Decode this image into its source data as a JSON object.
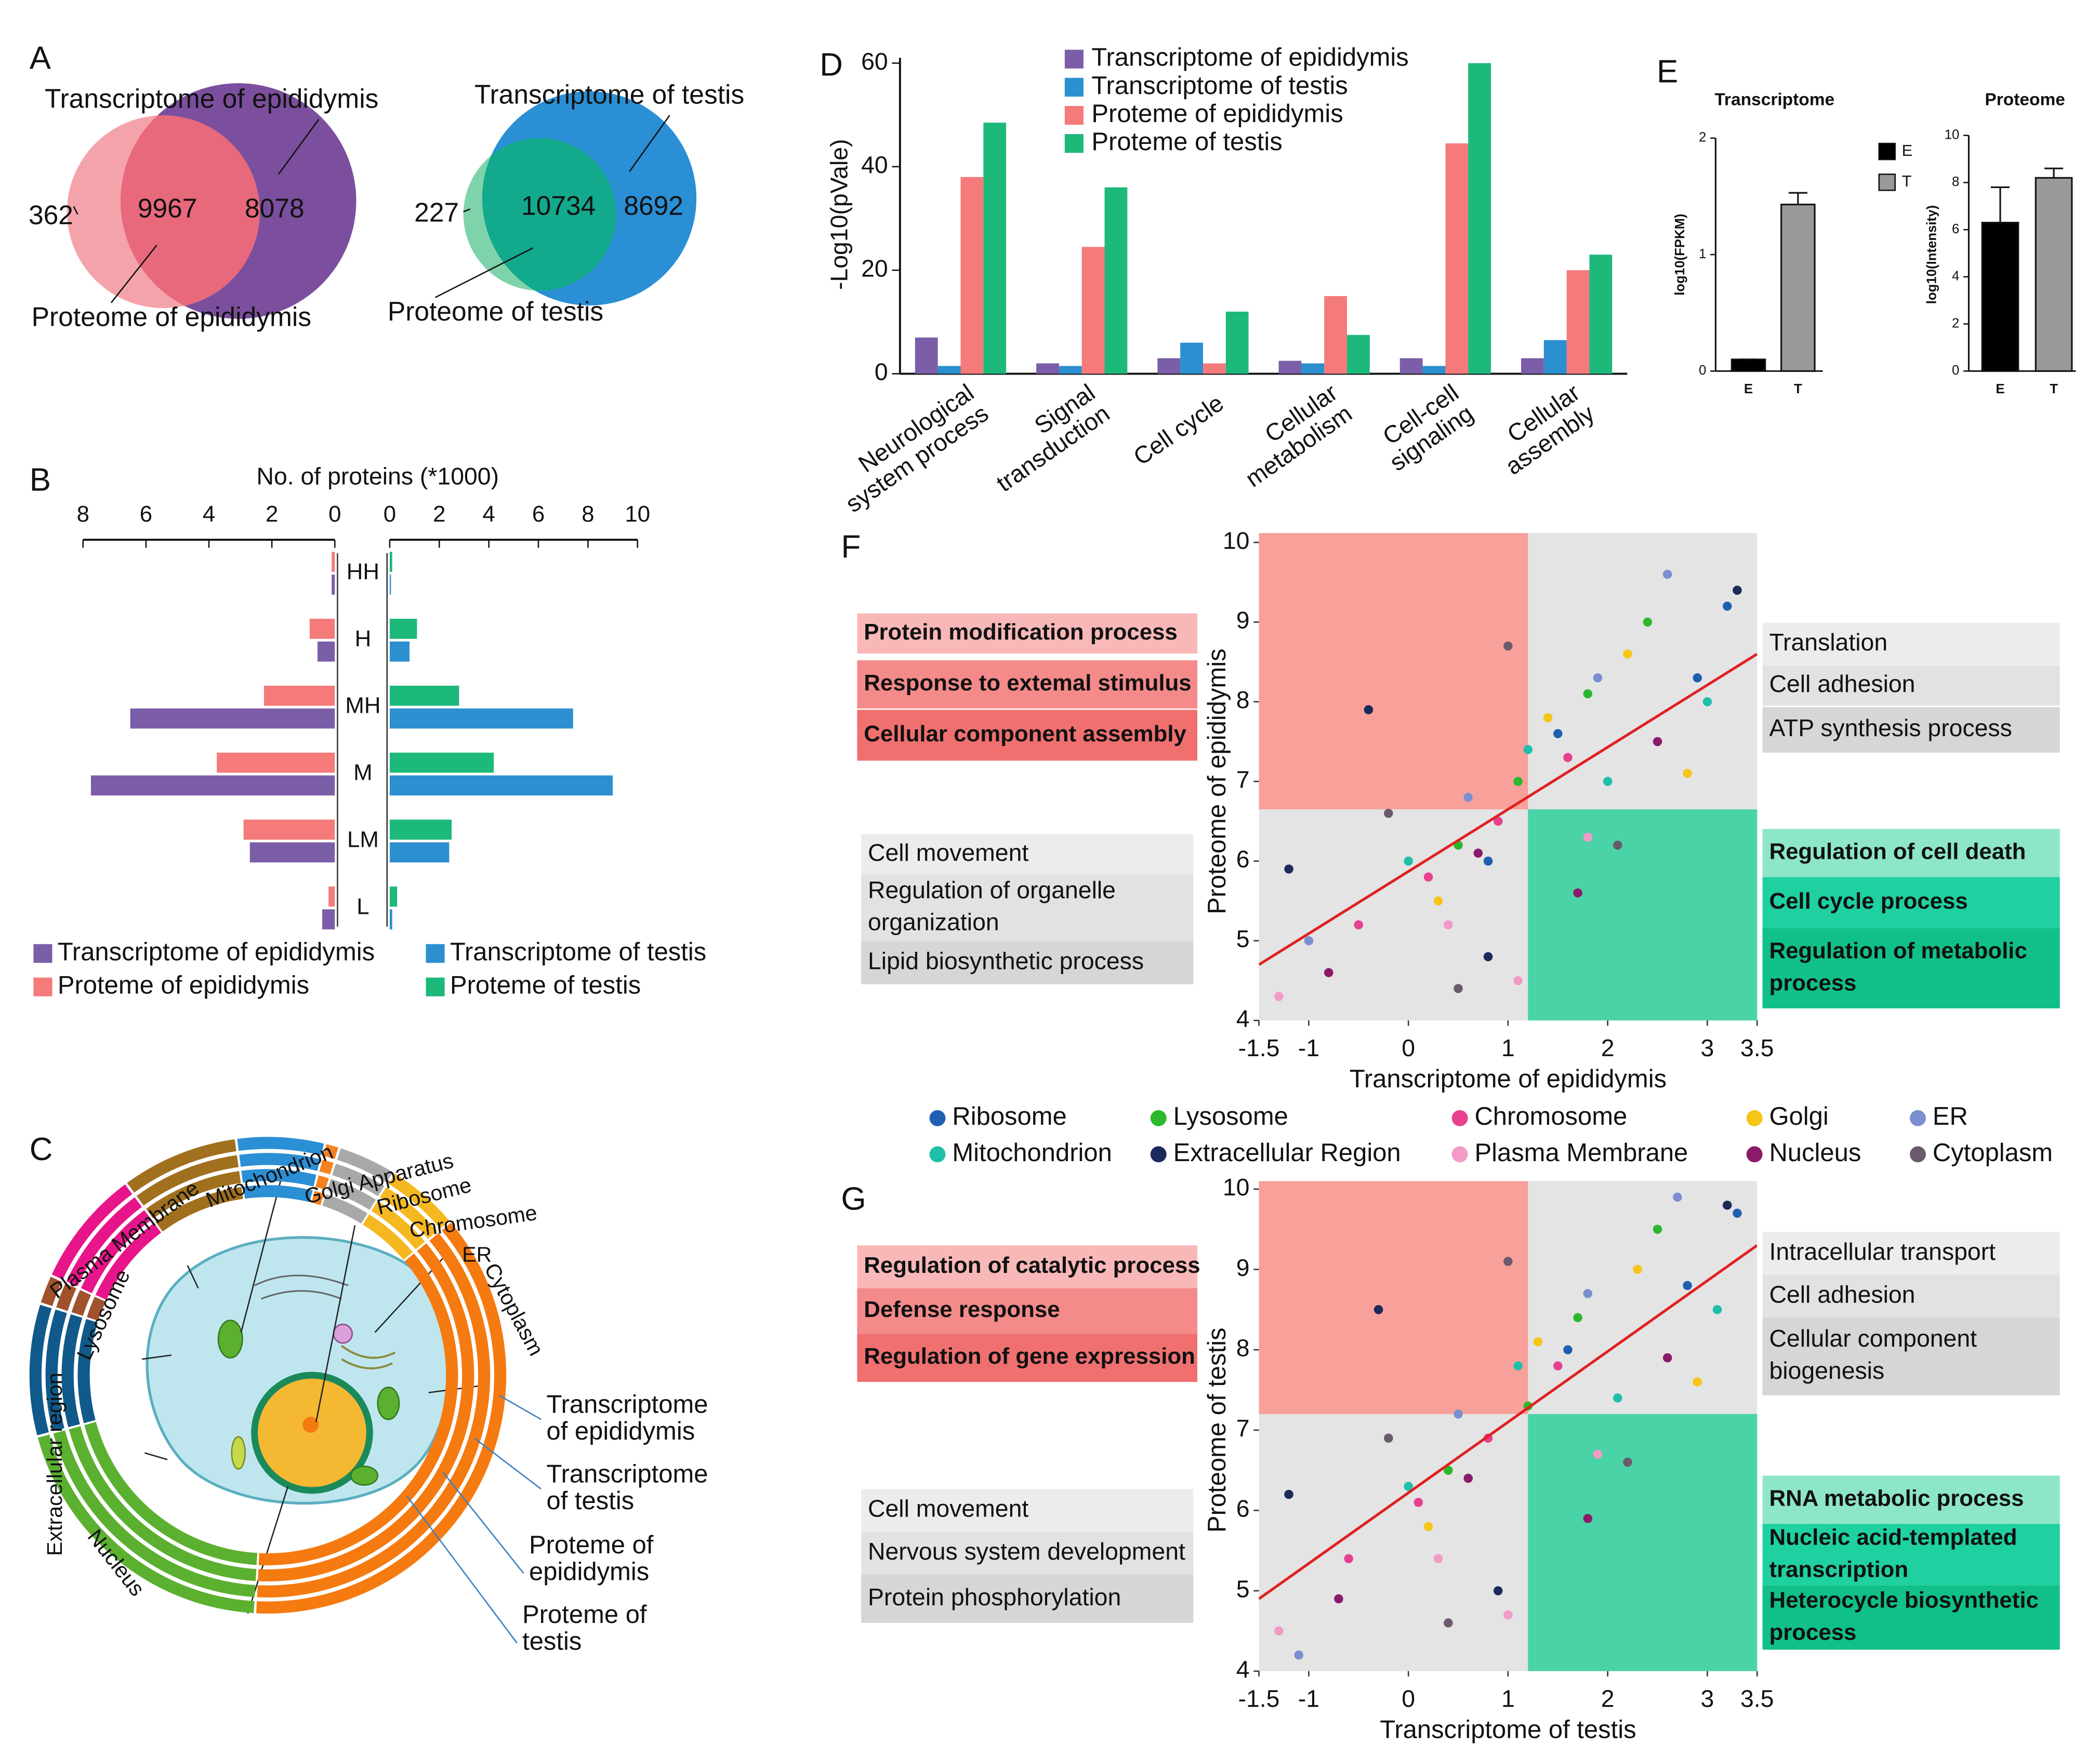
{
  "chart_data": [
    {
      "type": "venn",
      "panel": "A",
      "sets": [
        {
          "name": "Transcriptome of epididymis",
          "color": "#7b4f9d"
        },
        {
          "name": "Proteome of epididymis",
          "color": "#f5a3ab"
        }
      ],
      "overlap_color": "#e8687c",
      "values": [
        362,
        9967,
        8078
      ]
    },
    {
      "type": "venn",
      "sets": [
        {
          "name": "Transcriptome of testis",
          "color": "#2a8fd4"
        },
        {
          "name": "Proteome of testis",
          "color": "#7fd3ab"
        }
      ],
      "overlap_color": "#13a98c",
      "values": [
        227,
        10734,
        8692
      ]
    },
    {
      "type": "butterfly",
      "panel": "B",
      "title": "No. of proteins (*1000)",
      "categories": [
        "HH",
        "H",
        "MH",
        "M",
        "LM",
        "L"
      ],
      "xlim": [
        0,
        8
      ],
      "xticks": [
        8,
        6,
        4,
        2,
        0
      ],
      "x2lim": [
        0,
        10
      ],
      "x2ticks": [
        0,
        2,
        4,
        6,
        8,
        10
      ],
      "series": [
        {
          "name": "Transcriptome of epididymis",
          "color": "#7b5ea7",
          "values": [
            0.1,
            0.55,
            6.5,
            7.75,
            2.7,
            0.4
          ]
        },
        {
          "name": "Proteme of epididymis",
          "color": "#f57a7a",
          "values": [
            0.1,
            0.8,
            2.25,
            3.75,
            2.9,
            0.2
          ]
        },
        {
          "name": "Transcriptome of testis",
          "color": "#2b8fd0",
          "axis": "x2",
          "values": [
            0.05,
            0.8,
            7.4,
            9.0,
            2.4,
            0.1
          ]
        },
        {
          "name": "Proteme of testis",
          "color": "#1db97a",
          "axis": "x2",
          "values": [
            0.1,
            1.1,
            2.8,
            4.2,
            2.5,
            0.3
          ]
        }
      ]
    },
    {
      "type": "ring",
      "panel": "C",
      "categories": [
        "Plasma Membrane",
        "Mitochondrion",
        "Golgi Apparatus",
        "ER",
        "Ribosome",
        "Chromosome",
        "Cytoplasm",
        "Nucleus",
        "Extracellular region",
        "Lysosome"
      ],
      "colors": [
        "#e8158a",
        "#a0701e",
        "#2a8fd4",
        "#f58220",
        "#a8a8a8",
        "#f5b820",
        "#f57a10",
        "#5cb030",
        "#0f5a8a",
        "#a0522d"
      ],
      "series": [
        {
          "name": "Transcriptome of epididymis",
          "values": [
            8,
            8,
            6,
            1,
            4,
            5,
            37,
            20,
            9,
            2
          ]
        },
        {
          "name": "Transcriptome of testis",
          "values": [
            8,
            8,
            6,
            1,
            4,
            5,
            37,
            20,
            9,
            2
          ]
        },
        {
          "name": "Proteme of epididymis",
          "values": [
            8,
            8,
            6,
            1,
            4,
            5,
            37,
            20,
            9,
            2
          ]
        },
        {
          "name": "Proteme of testis",
          "values": [
            8,
            8,
            6,
            1,
            4,
            5,
            37,
            20,
            9,
            2
          ]
        }
      ]
    },
    {
      "type": "bar",
      "panel": "D",
      "ylabel": "-Log10(pVale)",
      "categories": [
        "Neurological system process",
        "Signal transduction",
        "Cell cycle",
        "Cellular metabolism",
        "Cell-cell signaling",
        "Cellular assembly"
      ],
      "ylim": [
        0,
        60
      ],
      "yticks": [
        0,
        20,
        40,
        60
      ],
      "series": [
        {
          "name": "Transcriptome of epididymis",
          "color": "#7b5ea7",
          "values": [
            7,
            2,
            3,
            2.5,
            3,
            3
          ]
        },
        {
          "name": "Transcriptome of testis",
          "color": "#2b8fd0",
          "values": [
            1.5,
            1.5,
            6,
            2,
            1.5,
            6.5
          ]
        },
        {
          "name": "Proteme of epididymis",
          "color": "#f57a7a",
          "values": [
            38,
            24.5,
            2,
            15,
            44.5,
            20
          ]
        },
        {
          "name": "Proteme of testis",
          "color": "#1db97a",
          "values": [
            48.5,
            36,
            12,
            7.5,
            60,
            23
          ]
        }
      ]
    },
    {
      "type": "errorbar",
      "panel": "E",
      "title": "Transcriptome",
      "ylabel": "log10(FPKM)",
      "categories": [
        "E",
        "T"
      ],
      "values": [
        0.1,
        1.43
      ],
      "errors": [
        0,
        0.1
      ],
      "colors": [
        "#000000",
        "#999999"
      ],
      "ylim": [
        0,
        2
      ],
      "yticks": [
        0,
        1,
        2
      ]
    },
    {
      "type": "errorbar",
      "title": "Proteome",
      "ylabel": "log10(Intensity)",
      "categories": [
        "E",
        "T"
      ],
      "values": [
        6.3,
        8.2
      ],
      "errors": [
        1.5,
        0.4
      ],
      "colors": [
        "#000000",
        "#999999"
      ],
      "ylim": [
        0,
        10
      ],
      "yticks": [
        0,
        2,
        4,
        6,
        8,
        10
      ],
      "legend": true
    },
    {
      "type": "scatter",
      "panel": "F",
      "xlabel": "Transcriptome of epididymis",
      "ylabel": "Proteome of epididymis",
      "xlim": [
        -1.5,
        3.5
      ],
      "xticks": [
        -1.5,
        -1,
        0,
        1,
        2,
        3,
        3.5
      ],
      "ylim": [
        4,
        10
      ],
      "yticks": [
        4,
        5,
        6,
        7,
        8,
        9,
        10
      ],
      "quadrant_split": [
        1.2,
        6.65
      ],
      "quadrant_colors": [
        "#f8a09a",
        "#4ad3a6"
      ],
      "fit_line": {
        "x": [
          -1.5,
          3.5
        ],
        "y": [
          4.7,
          8.6
        ],
        "color": "#e02020"
      },
      "series": [
        {
          "x": [
            2.9,
            3.2,
            1.5,
            0.8
          ],
          "values": [
            8.3,
            9.2,
            7.6,
            6.0
          ]
        },
        {
          "x": [
            0.5,
            1.8,
            2.4,
            1.1
          ],
          "values": [
            6.2,
            8.1,
            9.0,
            7.0
          ]
        },
        {
          "x": [
            -0.5,
            0.9,
            1.6,
            0.2
          ],
          "values": [
            5.2,
            6.5,
            7.3,
            5.8
          ]
        },
        {
          "x": [
            0.3,
            1.4,
            2.2,
            2.8
          ],
          "values": [
            5.5,
            7.8,
            8.6,
            7.1
          ]
        },
        {
          "x": [
            -1.0,
            0.6,
            1.9,
            2.6
          ],
          "values": [
            5.0,
            6.8,
            8.3,
            9.6
          ]
        },
        {
          "x": [
            0.0,
            1.2,
            2.0,
            3.0
          ],
          "values": [
            6.0,
            7.4,
            7.0,
            8.0
          ]
        },
        {
          "x": [
            -1.2,
            -0.4,
            0.8,
            3.3
          ],
          "values": [
            5.9,
            7.9,
            4.8,
            9.4
          ]
        },
        {
          "x": [
            -1.3,
            0.4,
            1.1,
            1.8
          ],
          "values": [
            4.3,
            5.2,
            4.5,
            6.3
          ]
        },
        {
          "x": [
            -0.8,
            0.7,
            1.7,
            2.5
          ],
          "values": [
            4.6,
            6.1,
            5.6,
            7.5
          ]
        },
        {
          "x": [
            -0.2,
            1.0,
            2.1,
            0.5
          ],
          "values": [
            6.6,
            8.7,
            6.2,
            4.4
          ]
        }
      ],
      "annotations": {
        "upper_left": [
          "Protein modification process",
          "Response to extemal stimulus",
          "Cellular component assembly"
        ],
        "upper_right": [
          "Translation",
          "Cell adhesion",
          "ATP synthesis process"
        ],
        "lower_left": [
          "Cell movement",
          "Regulation of organelle organization",
          "Lipid biosynthetic process"
        ],
        "lower_right": [
          "Regulation of cell death",
          "Cell cycle process",
          "Regulation of metabolic process"
        ]
      }
    },
    {
      "type": "legend",
      "categories": [
        "Ribosome",
        "Lysosome",
        "Chromosome",
        "Golgi",
        "ER",
        "Mitochondrion",
        "Extracellular Region",
        "Plasma Membrane",
        "Nucleus",
        "Cytoplasm"
      ],
      "colors": [
        "#1f5fb0",
        "#2cb82c",
        "#e8408f",
        "#f5c518",
        "#7b8fd0",
        "#1fbfa8",
        "#1a2a5a",
        "#f29ac8",
        "#8b1a6b",
        "#6b5a6b"
      ]
    },
    {
      "type": "scatter",
      "panel": "G",
      "xlabel": "Transcriptome of testis",
      "ylabel": "Proteome of testis",
      "xlim": [
        -1.5,
        3.5
      ],
      "xticks": [
        -1.5,
        -1,
        0,
        1,
        2,
        3,
        3.5
      ],
      "ylim": [
        4,
        10
      ],
      "yticks": [
        4,
        5,
        6,
        7,
        8,
        9,
        10
      ],
      "quadrant_split": [
        1.2,
        7.2
      ],
      "quadrant_colors": [
        "#f8a09a",
        "#4ad3a6"
      ],
      "fit_line": {
        "x": [
          -1.5,
          3.5
        ],
        "y": [
          4.9,
          9.3
        ],
        "color": "#e02020"
      },
      "series": [
        {
          "x": [
            2.8,
            3.3,
            1.6,
            0.6
          ],
          "values": [
            8.8,
            9.7,
            8.0,
            6.4
          ]
        },
        {
          "x": [
            0.4,
            1.7,
            2.5,
            1.2
          ],
          "values": [
            6.5,
            8.4,
            9.5,
            7.3
          ]
        },
        {
          "x": [
            -0.6,
            0.8,
            1.5,
            0.1
          ],
          "values": [
            5.4,
            6.9,
            7.8,
            6.1
          ]
        },
        {
          "x": [
            0.2,
            1.3,
            2.3,
            2.9
          ],
          "values": [
            5.8,
            8.1,
            9.0,
            7.6
          ]
        },
        {
          "x": [
            -1.1,
            0.5,
            1.8,
            2.7
          ],
          "values": [
            4.2,
            7.2,
            8.7,
            9.9
          ]
        },
        {
          "x": [
            0.0,
            1.1,
            2.1,
            3.1
          ],
          "values": [
            6.3,
            7.8,
            7.4,
            8.5
          ]
        },
        {
          "x": [
            -1.2,
            -0.3,
            0.9,
            3.2
          ],
          "values": [
            6.2,
            8.5,
            5.0,
            9.8
          ]
        },
        {
          "x": [
            -1.3,
            0.3,
            1.0,
            1.9
          ],
          "values": [
            4.5,
            5.4,
            4.7,
            6.7
          ]
        },
        {
          "x": [
            -0.7,
            0.6,
            1.8,
            2.6
          ],
          "values": [
            4.9,
            6.4,
            5.9,
            7.9
          ]
        },
        {
          "x": [
            -0.2,
            1.0,
            2.2,
            0.4
          ],
          "values": [
            6.9,
            9.1,
            6.6,
            4.6
          ]
        }
      ],
      "annotations": {
        "upper_left": [
          "Regulation of catalytic process",
          "Defense response",
          "Regulation of gene expression"
        ],
        "upper_right": [
          "Intracellular transport",
          "Cell adhesion",
          "Cellular component biogenesis"
        ],
        "lower_left": [
          "Cell movement",
          "Nervous system development",
          "Protein phosphorylation"
        ],
        "lower_right": [
          "RNA metabolic process",
          "Nucleic acid-templated transcription",
          "Heterocycle biosynthetic process"
        ]
      }
    }
  ]
}
